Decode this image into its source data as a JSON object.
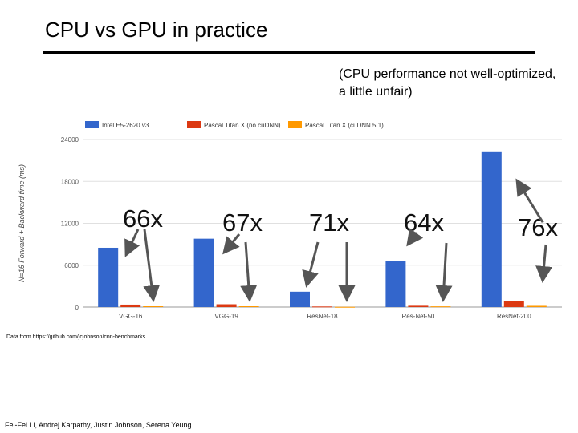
{
  "slide": {
    "title": "CPU vs GPU in practice",
    "note": "(CPU performance not well-optimized, a little unfair)",
    "source": "Data from https://github.com/jcjohnson/cnn-benchmarks",
    "credit": "Fei-Fei Li, Andrej Karpathy, Justin Johnson, Serena Yeung"
  },
  "chart_data": {
    "type": "bar",
    "title": "",
    "ylabel": "N=16 Forward + Backward time (ms)",
    "xlabel": "",
    "categories": [
      "VGG-16",
      "VGG-19",
      "ResNet-18",
      "Res-Net-50",
      "ResNet-200"
    ],
    "series": [
      {
        "name": "Intel E5-2620 v3",
        "color": "#3366cc",
        "values": [
          8500,
          9800,
          2200,
          6600,
          22300
        ]
      },
      {
        "name": "Pascal Titan X (no cuDNN)",
        "color": "#dc3912",
        "values": [
          350,
          400,
          80,
          300,
          850
        ]
      },
      {
        "name": "Pascal Titan X (cuDNN 5.1)",
        "color": "#ff9900",
        "values": [
          130,
          150,
          30,
          100,
          290
        ]
      }
    ],
    "ylim": [
      0,
      24000
    ],
    "yticks": [
      "0",
      "6000",
      "12000",
      "18000",
      "24000"
    ],
    "grid": true,
    "legend_position": "top",
    "annotations": [
      "66x",
      "67x",
      "71x",
      "64x",
      "76x"
    ]
  }
}
